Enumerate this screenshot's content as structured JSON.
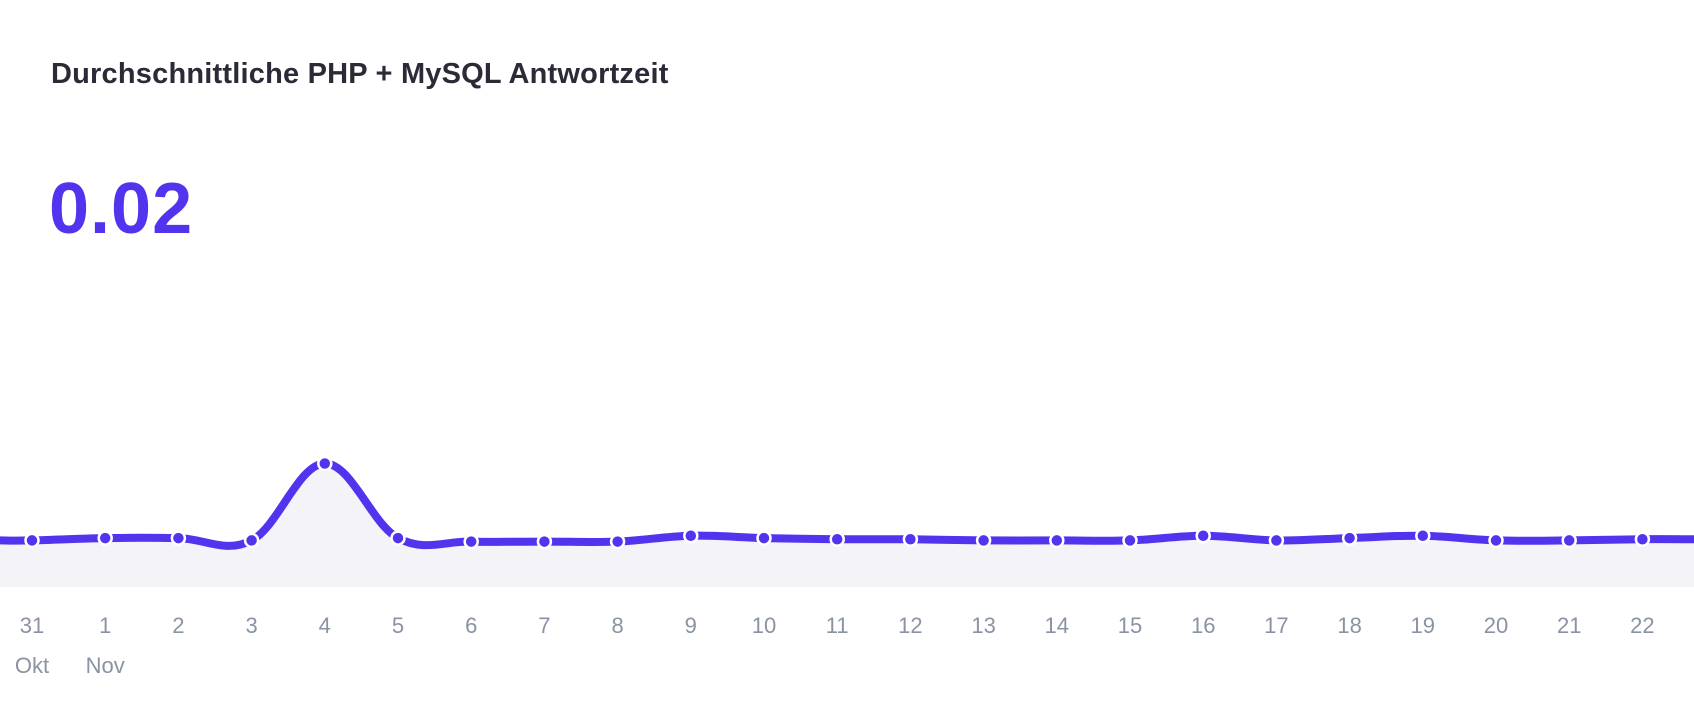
{
  "header": {
    "title": "Durchschnittliche PHP + MySQL Antwortzeit",
    "average_value": "0.02"
  },
  "chart_data": {
    "type": "area",
    "title": "Durchschnittliche PHP + MySQL Antwortzeit",
    "xlabel": "",
    "ylabel": "",
    "categories": [
      "31",
      "1",
      "2",
      "3",
      "4",
      "5",
      "6",
      "7",
      "8",
      "9",
      "10",
      "11",
      "12",
      "13",
      "14",
      "15",
      "16",
      "17",
      "18",
      "19",
      "20",
      "21",
      "22"
    ],
    "month_labels": [
      {
        "index": 0,
        "label": "Okt"
      },
      {
        "index": 1,
        "label": "Nov"
      }
    ],
    "values": [
      0.02,
      0.021,
      0.021,
      0.02,
      0.053,
      0.021,
      0.0195,
      0.0195,
      0.0195,
      0.022,
      0.021,
      0.0205,
      0.0205,
      0.02,
      0.02,
      0.02,
      0.022,
      0.02,
      0.021,
      0.022,
      0.02,
      0.02,
      0.0205
    ],
    "ylim": [
      0,
      0.1
    ],
    "grid": false,
    "legend": "none",
    "colors": {
      "line": "#5333ed",
      "fill": "#f3f3f8",
      "tick_text": "#8a93a3",
      "title": "#2a2b36"
    }
  }
}
